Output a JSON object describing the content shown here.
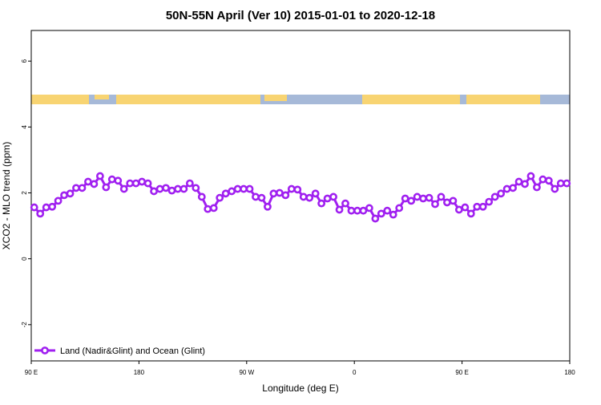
{
  "chart_data": {
    "type": "line",
    "title": "50N-55N April (Ver 10)   2015-01-01 to 2020-12-18",
    "x_label": "Longitude (deg E)",
    "y_label": "XCO2 - MLO trend (ppm)",
    "xlim": [
      90,
      540
    ],
    "ylim": [
      -3.1,
      6.93
    ],
    "xticks": [
      {
        "value": 90,
        "label": "90 E"
      },
      {
        "value": 180,
        "label": "180"
      },
      {
        "value": 270,
        "label": "90 W"
      },
      {
        "value": 360,
        "label": "0"
      },
      {
        "value": 450,
        "label": "90 E"
      },
      {
        "value": 540,
        "label": "180"
      }
    ],
    "yticks": [
      -2,
      0,
      2,
      4,
      6
    ],
    "legend": "bottom-left",
    "x": [
      92.5,
      97.5,
      102.5,
      107.5,
      112.5,
      117.5,
      122.5,
      127.5,
      132.5,
      137.5,
      142.5,
      147.5,
      152.5,
      157.5,
      162.5,
      167.5,
      172.5,
      177.5,
      182.5,
      187.5,
      192.5,
      197.5,
      202.5,
      207.5,
      212.5,
      217.5,
      222.5,
      227.5,
      232.5,
      237.5,
      242.5,
      247.5,
      252.5,
      257.5,
      262.5,
      267.5,
      272.5,
      277.5,
      282.5,
      287.5,
      292.5,
      297.5,
      302.5,
      307.5,
      312.5,
      317.5,
      322.5,
      327.5,
      332.5,
      337.5,
      342.5,
      347.5,
      352.5,
      357.5,
      362.5,
      367.5,
      372.5,
      377.5,
      382.5,
      387.5,
      392.5,
      397.5,
      402.5,
      407.5,
      412.5,
      417.5,
      422.5,
      427.5,
      432.5,
      437.5,
      442.5,
      447.5,
      452.5,
      457.5,
      462.5,
      467.5,
      472.5,
      477.5,
      482.5,
      487.5,
      492.5,
      497.5,
      502.5,
      507.5,
      512.5,
      517.5,
      522.5,
      527.5,
      532.5,
      537.5
    ],
    "series": [
      {
        "name": "Land (Nadir&Glint) and Ocean (Glint)",
        "color": "#a020f0",
        "values": [
          1.56,
          1.37,
          1.56,
          1.58,
          1.76,
          1.93,
          1.98,
          2.15,
          2.15,
          2.34,
          2.27,
          2.51,
          2.17,
          2.41,
          2.37,
          2.12,
          2.29,
          2.29,
          2.34,
          2.29,
          2.05,
          2.12,
          2.15,
          2.07,
          2.12,
          2.12,
          2.29,
          2.15,
          1.88,
          1.51,
          1.54,
          1.85,
          1.98,
          2.05,
          2.12,
          2.12,
          2.12,
          1.88,
          1.85,
          1.58,
          1.98,
          2.0,
          1.93,
          2.12,
          2.1,
          1.88,
          1.85,
          1.98,
          1.68,
          1.83,
          1.88,
          1.49,
          1.68,
          1.46,
          1.46,
          1.46,
          1.54,
          1.22,
          1.37,
          1.46,
          1.34,
          1.54,
          1.83,
          1.76,
          1.88,
          1.83,
          1.85,
          1.66,
          1.88,
          1.71,
          1.76,
          1.49,
          1.56,
          1.37,
          1.58,
          1.58,
          1.73,
          1.88,
          1.98,
          2.12,
          2.15,
          2.34,
          2.27,
          2.51,
          2.17,
          2.41,
          2.37,
          2.12,
          2.29,
          2.29
        ]
      }
    ]
  }
}
